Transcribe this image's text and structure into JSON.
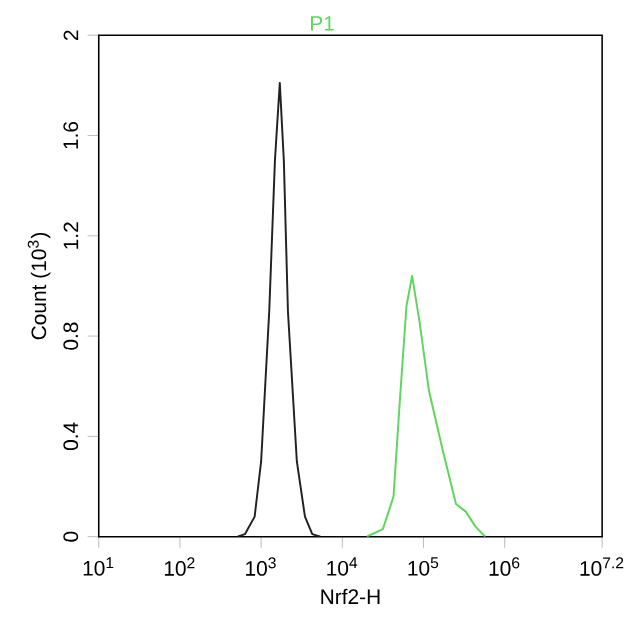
{
  "chart_data": {
    "type": "line",
    "xlabel": "Nrf2-H",
    "ylabel": "Count (10$^{3}$)",
    "xlim": [
      10,
      15848932
    ],
    "ylim": [
      0,
      2
    ],
    "log": "x",
    "xticks": [
      {
        "value": 10,
        "label": "10$^{1}$"
      },
      {
        "value": 100,
        "label": "10$^{2}$"
      },
      {
        "value": 1000,
        "label": "10$^{3}$"
      },
      {
        "value": 10000,
        "label": "10$^{4}$"
      },
      {
        "value": 100000,
        "label": "10$^{5}$"
      },
      {
        "value": 1000000,
        "label": "10$^{6}$"
      },
      {
        "value": 15848932,
        "label": "10$^{7.2}$"
      }
    ],
    "yticks": [
      0,
      0.4,
      0.8,
      1.2,
      1.6,
      2
    ],
    "legend": "top",
    "series": [
      {
        "color": "#222222",
        "x": [
          513,
          631,
          832,
          1000,
          1259,
          1479,
          1698,
          1905,
          2138,
          2754,
          3467,
          4266,
          5370
        ],
        "values": [
          0,
          0.01,
          0.08,
          0.3,
          0.9,
          1.5,
          1.81,
          1.5,
          0.9,
          0.3,
          0.08,
          0.01,
          0
        ]
      },
      {
        "name": "P1",
        "color": "#5cd65c",
        "x": [
          20000,
          31600,
          42700,
          51300,
          61700,
          72400,
          89100,
          117000,
          174000,
          251000,
          331000,
          437000,
          575000
        ],
        "values": [
          0,
          0.03,
          0.16,
          0.55,
          0.92,
          1.04,
          0.86,
          0.58,
          0.34,
          0.13,
          0.1,
          0.04,
          0
        ]
      }
    ]
  }
}
